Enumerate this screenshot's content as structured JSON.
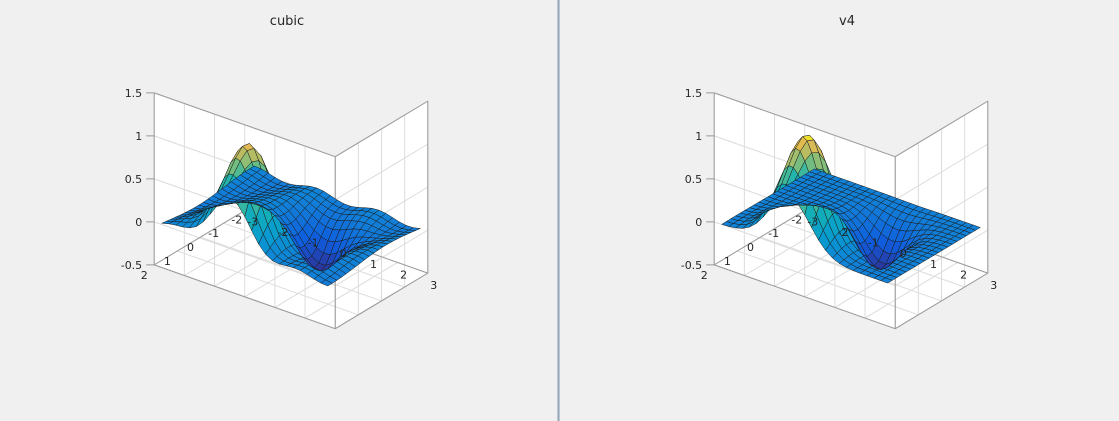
{
  "chart_data": [
    {
      "type": "surface",
      "title": "cubic",
      "method": "cubic interpolation",
      "xlim": [
        -3,
        3
      ],
      "ylim": [
        -2,
        2
      ],
      "zlim": [
        -0.5,
        1.5
      ],
      "x_ticks": [
        "-3",
        "-2",
        "-1",
        "0",
        "1",
        "2",
        "3"
      ],
      "y_ticks": [
        "-2",
        "-1",
        "0",
        "1",
        "2"
      ],
      "z_ticks": [
        "-0.5",
        "0",
        "0.5",
        "1",
        "1.5"
      ],
      "grid": true,
      "colormap": "parula",
      "peak": {
        "x": -0.5,
        "y": 1.25,
        "z": 1.1
      },
      "trough": {
        "x": 0.6,
        "y": -0.4,
        "z": -0.55
      }
    },
    {
      "type": "surface",
      "title": "v4",
      "method": "biharmonic (v4) interpolation",
      "xlim": [
        -3,
        3
      ],
      "ylim": [
        -2,
        2
      ],
      "zlim": [
        -0.5,
        1.5
      ],
      "x_ticks": [
        "-3",
        "-2",
        "-1",
        "0",
        "1",
        "2",
        "3"
      ],
      "y_ticks": [
        "-2",
        "-1",
        "0",
        "1",
        "2"
      ],
      "z_ticks": [
        "-0.5",
        "0",
        "0.5",
        "1",
        "1.5"
      ],
      "grid": true,
      "colormap": "parula",
      "peak": {
        "x": -0.5,
        "y": 1.25,
        "z": 1.2
      },
      "trough": {
        "x": 0.6,
        "y": -0.4,
        "z": -0.5
      }
    }
  ]
}
